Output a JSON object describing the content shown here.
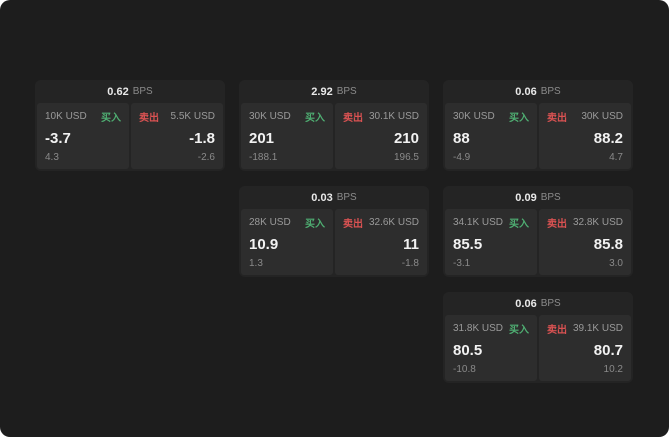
{
  "labels": {
    "bps": "BPS",
    "buy": "买入",
    "sell": "卖出"
  },
  "colors": {
    "background": "#1d1d1d",
    "card": "#242424",
    "panel": "#2d2d2d",
    "buy_green": "#4fae72",
    "sell_red": "#d95252",
    "price_text": "#f2f2f2",
    "secondary_text": "#8a8a8a"
  },
  "cards": [
    {
      "bps": "0.62",
      "buy": {
        "amount": "10K USD",
        "price": "-3.7",
        "sub": "4.3"
      },
      "sell": {
        "amount": "5.5K USD",
        "price": "-1.8",
        "sub": "-2.6"
      }
    },
    {
      "bps": "2.92",
      "buy": {
        "amount": "30K USD",
        "price": "201",
        "sub": "-188.1"
      },
      "sell": {
        "amount": "30.1K USD",
        "price": "210",
        "sub": "196.5"
      }
    },
    {
      "bps": "0.06",
      "buy": {
        "amount": "30K USD",
        "price": "88",
        "sub": "-4.9"
      },
      "sell": {
        "amount": "30K USD",
        "price": "88.2",
        "sub": "4.7"
      }
    },
    {
      "bps": "0.03",
      "buy": {
        "amount": "28K USD",
        "price": "10.9",
        "sub": "1.3"
      },
      "sell": {
        "amount": "32.6K USD",
        "price": "11",
        "sub": "-1.8"
      }
    },
    {
      "bps": "0.09",
      "buy": {
        "amount": "34.1K USD",
        "price": "85.5",
        "sub": "-3.1"
      },
      "sell": {
        "amount": "32.8K USD",
        "price": "85.8",
        "sub": "3.0"
      }
    },
    {
      "bps": "0.06",
      "buy": {
        "amount": "31.8K USD",
        "price": "80.5",
        "sub": "-10.8"
      },
      "sell": {
        "amount": "39.1K USD",
        "price": "80.7",
        "sub": "10.2"
      }
    }
  ]
}
